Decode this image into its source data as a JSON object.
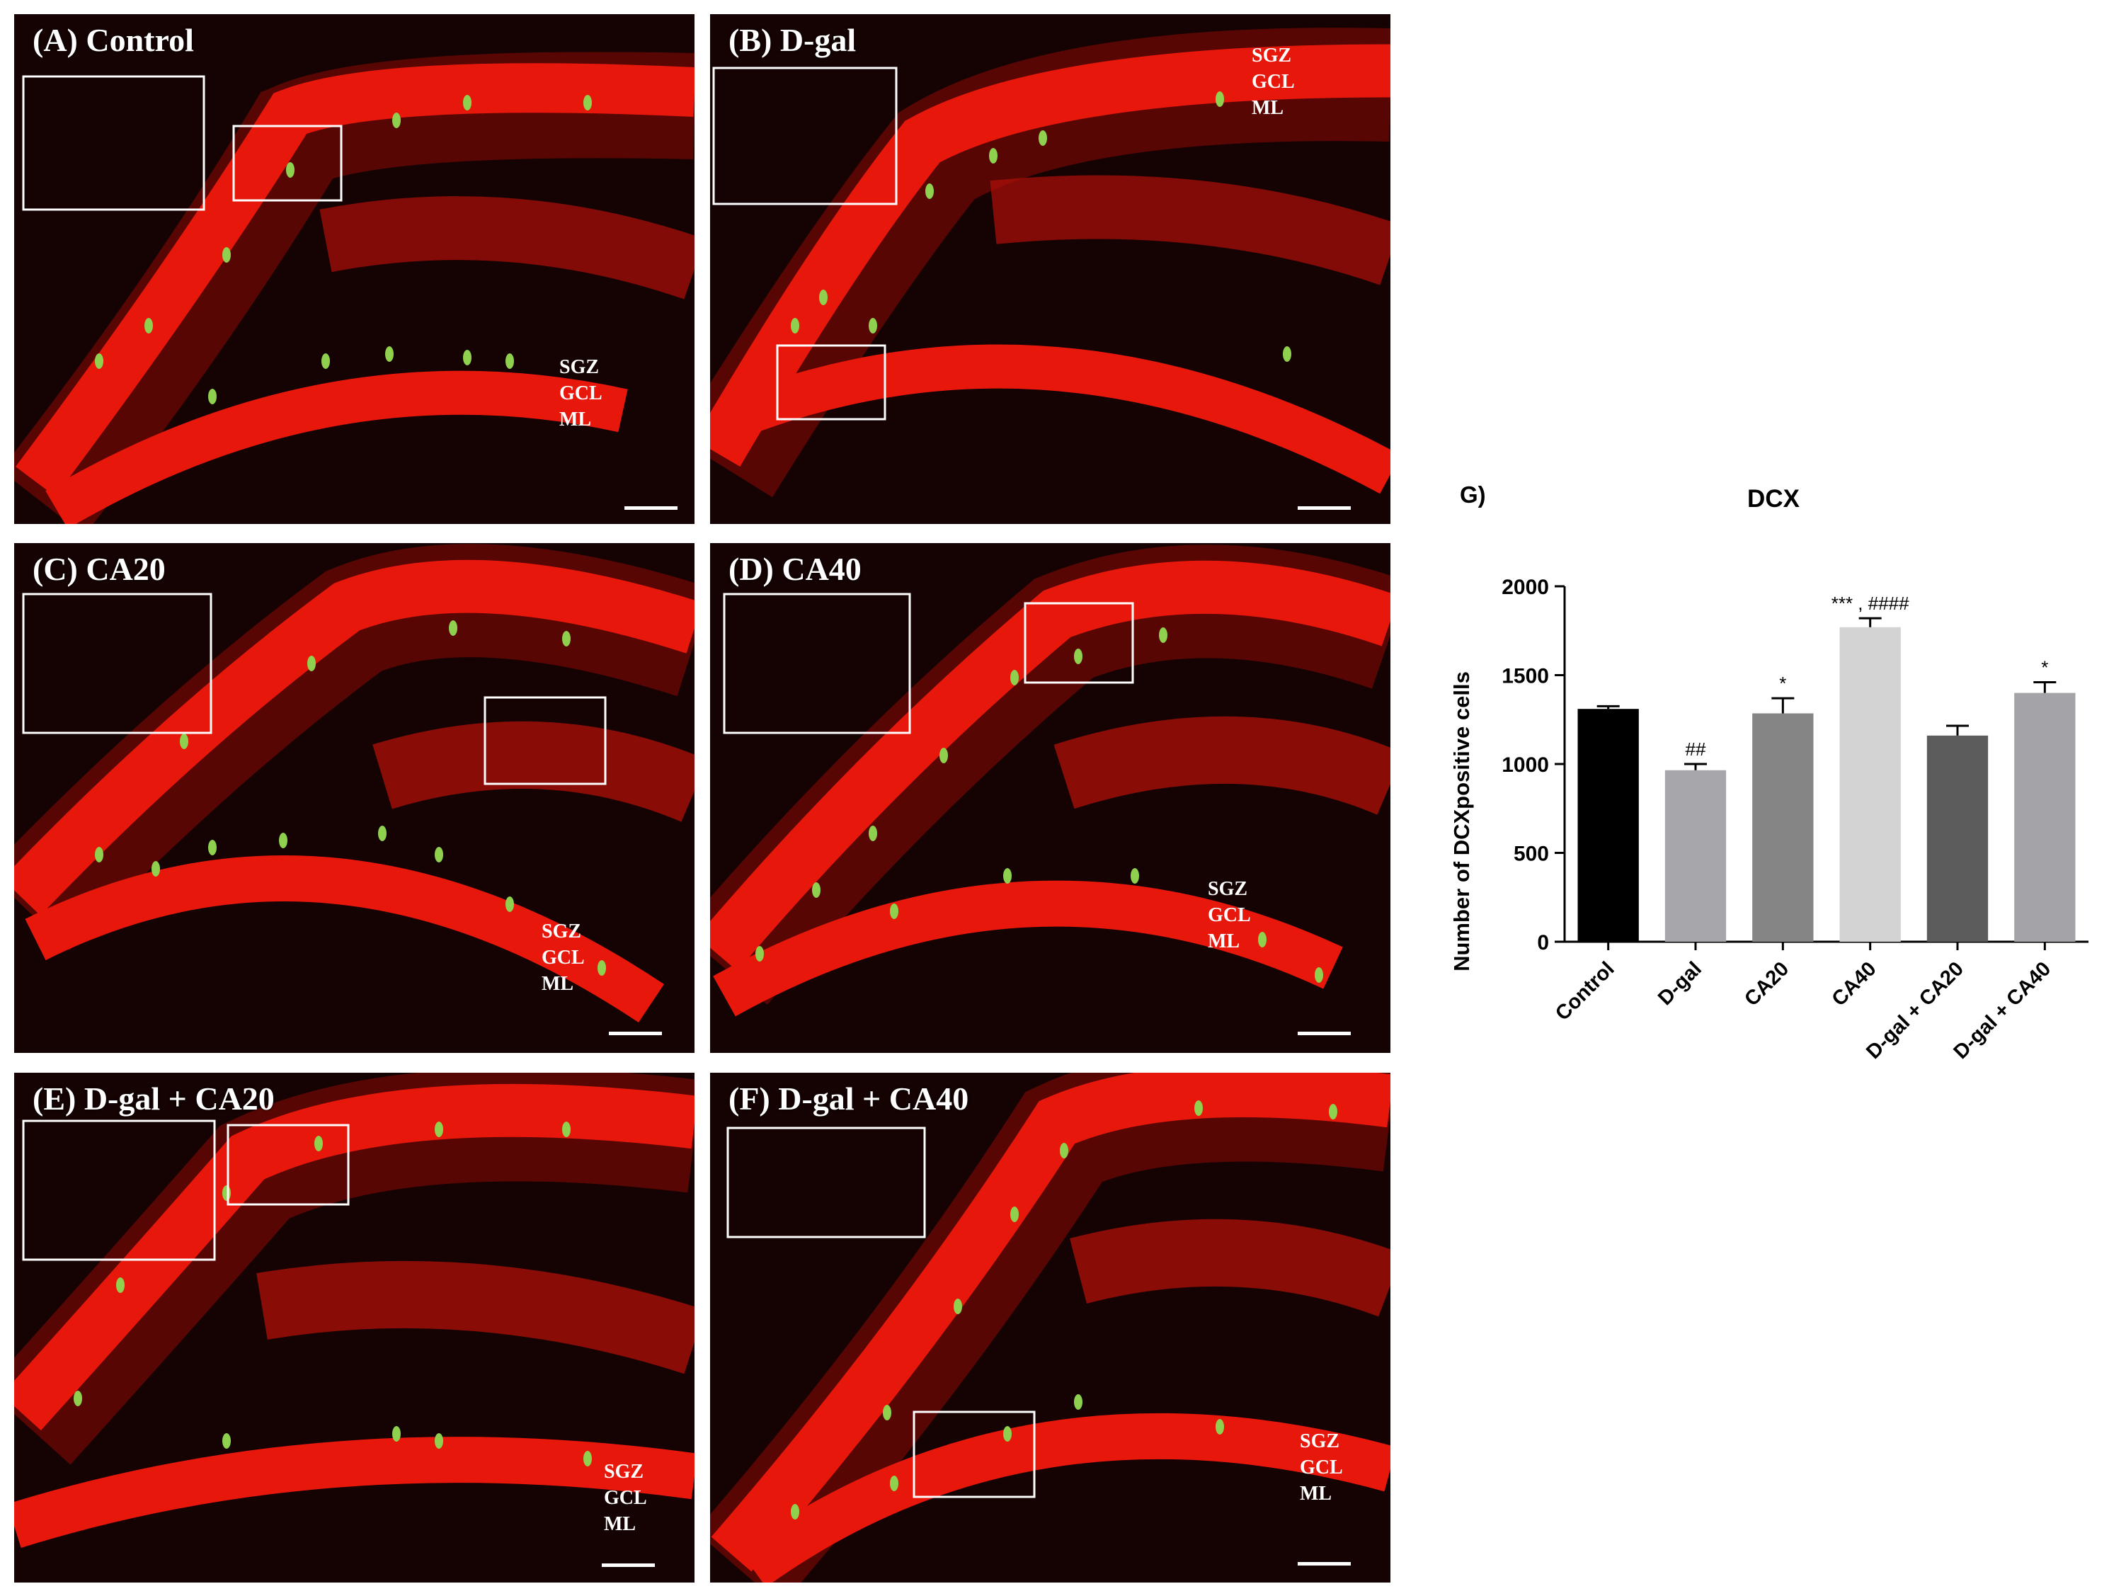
{
  "panels": [
    {
      "id": "A",
      "label": "(A) Control",
      "layers": [
        "SGZ",
        "GCL",
        "ML"
      ]
    },
    {
      "id": "B",
      "label": "(B) D-gal",
      "layers": [
        "SGZ",
        "GCL",
        "ML"
      ]
    },
    {
      "id": "C",
      "label": "(C) CA20",
      "layers": [
        "SGZ",
        "GCL",
        "ML"
      ]
    },
    {
      "id": "D",
      "label": "(D) CA40",
      "layers": [
        "SGZ",
        "GCL",
        "ML"
      ]
    },
    {
      "id": "E",
      "label": "(E) D-gal + CA20",
      "layers": [
        "SGZ",
        "GCL",
        "ML"
      ]
    },
    {
      "id": "F",
      "label": "(F) D-gal + CA40",
      "layers": [
        "SGZ",
        "GCL",
        "ML"
      ]
    }
  ],
  "colors": {
    "tissue": "#e8170c",
    "tissue_dim": "#8f0b06",
    "background": "#150202",
    "cells": "#8fd14f",
    "arrow": "#ffffff"
  },
  "chart_data": {
    "type": "bar",
    "panel_label": "G)",
    "title": "DCX",
    "ylabel": "Number of DCXpositive cells",
    "xlabel": "",
    "ylim": [
      0,
      2000
    ],
    "yticks": [
      0,
      500,
      1000,
      1500,
      2000
    ],
    "categories": [
      "Control",
      "D-gal",
      "CA20",
      "CA40",
      "D-gal + CA20",
      "D-gal + CA40"
    ],
    "values": [
      1310,
      965,
      1285,
      1770,
      1160,
      1400
    ],
    "errors": [
      15,
      35,
      85,
      50,
      55,
      60
    ],
    "colors": [
      "#000000",
      "#a6a6ab",
      "#858585",
      "#d3d3d3",
      "#5c5c5c",
      "#a3a3a8"
    ],
    "annotations": [
      "",
      "##",
      "*",
      "*** , ####",
      "",
      "*"
    ],
    "grid": false,
    "legend": "none"
  }
}
